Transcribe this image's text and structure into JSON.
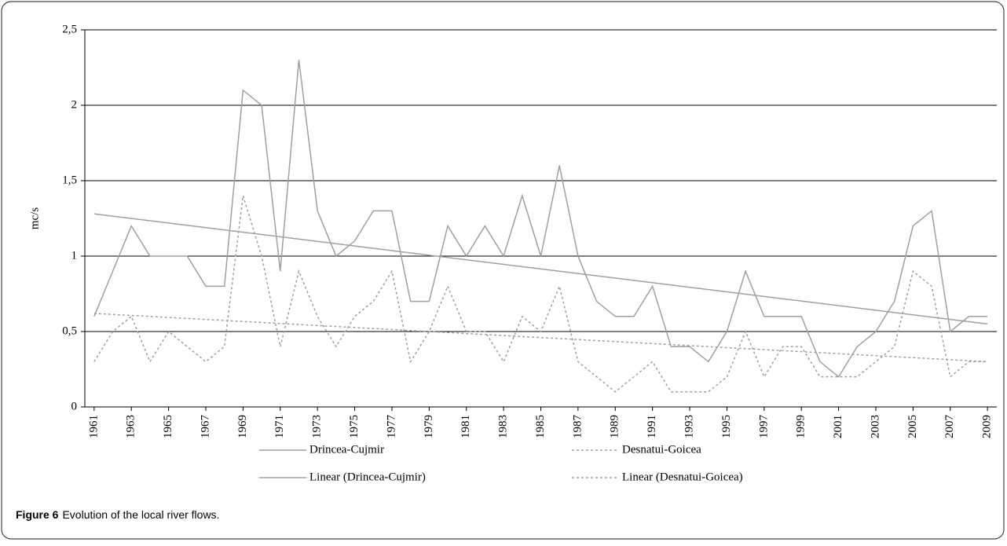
{
  "chart_data": {
    "type": "line",
    "y_label": "mc/s",
    "x": [
      1961,
      1962,
      1963,
      1964,
      1965,
      1966,
      1967,
      1968,
      1969,
      1970,
      1971,
      1972,
      1973,
      1974,
      1975,
      1976,
      1977,
      1978,
      1979,
      1980,
      1981,
      1982,
      1983,
      1984,
      1985,
      1986,
      1987,
      1988,
      1989,
      1990,
      1991,
      1992,
      1993,
      1994,
      1995,
      1996,
      1997,
      1998,
      1999,
      2000,
      2001,
      2002,
      2003,
      2004,
      2005,
      2006,
      2007,
      2008,
      2009
    ],
    "xlim": [
      1960.5,
      2009.5
    ],
    "xticks": [
      1961,
      1963,
      1965,
      1967,
      1969,
      1971,
      1973,
      1975,
      1977,
      1979,
      1981,
      1983,
      1985,
      1987,
      1989,
      1991,
      1993,
      1995,
      1997,
      1999,
      2001,
      2003,
      2005,
      2007,
      2009
    ],
    "ylim": [
      0,
      2.5
    ],
    "yticks": [
      0,
      {
        "value": 0.5,
        "label": "0,5"
      },
      1,
      {
        "value": 1.5,
        "label": "1,5"
      },
      2,
      {
        "value": 2.5,
        "label": "2,5"
      }
    ],
    "grid": true,
    "series": [
      {
        "name": "Drincea-Cujmir",
        "color": "#a0a0a0",
        "style": "solid",
        "values": [
          0.6,
          0.9,
          1.2,
          1.0,
          1.0,
          1.0,
          0.8,
          0.8,
          2.1,
          2.0,
          0.9,
          2.3,
          1.3,
          1.0,
          1.1,
          1.3,
          1.3,
          0.7,
          0.7,
          1.2,
          1.0,
          1.2,
          1.0,
          1.4,
          1.0,
          1.6,
          1.0,
          0.7,
          0.6,
          0.6,
          0.8,
          0.4,
          0.4,
          0.3,
          0.5,
          0.9,
          0.6,
          0.6,
          0.6,
          0.3,
          0.2,
          0.4,
          0.5,
          0.7,
          1.2,
          1.3,
          0.5,
          0.6,
          0.6
        ]
      },
      {
        "name": "Desnatui-Goicea",
        "color": "#a0a0a0",
        "style": "dotted",
        "values": [
          0.3,
          0.5,
          0.6,
          0.3,
          0.5,
          0.4,
          0.3,
          0.4,
          1.4,
          1.0,
          0.4,
          0.9,
          0.6,
          0.4,
          0.6,
          0.7,
          0.9,
          0.3,
          0.5,
          0.8,
          0.5,
          0.5,
          0.3,
          0.6,
          0.5,
          0.8,
          0.3,
          0.2,
          0.1,
          0.2,
          0.3,
          0.1,
          0.1,
          0.1,
          0.2,
          0.5,
          0.2,
          0.4,
          0.4,
          0.2,
          0.2,
          0.2,
          0.3,
          0.4,
          0.9,
          0.8,
          0.2,
          0.3,
          0.3
        ]
      },
      {
        "name": "Linear (Drincea-Cujmir)",
        "color": "#a0a0a0",
        "style": "solid",
        "x": [
          1961,
          2009
        ],
        "values": [
          1.28,
          0.55
        ]
      },
      {
        "name": "Linear (Desnatui-Goicea)",
        "color": "#a0a0a0",
        "style": "dotted",
        "x": [
          1961,
          2009
        ],
        "values": [
          0.62,
          0.3
        ]
      }
    ],
    "caption": {
      "label": "Figure 6",
      "text": "Evolution of the local river flows."
    }
  }
}
